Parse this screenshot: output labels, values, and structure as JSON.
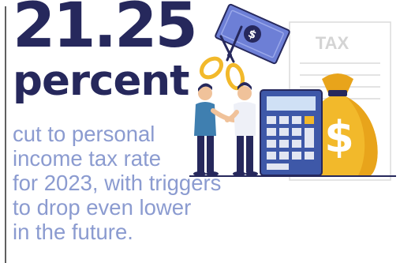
{
  "headline": {
    "stat": "21.25",
    "unit": "percent"
  },
  "description": {
    "lines": [
      "cut to personal",
      "income tax rate",
      "for 2023, with triggers",
      "to drop even lower",
      "in the future."
    ]
  },
  "illustration": {
    "form_label": "TAX",
    "bill_symbol": "$",
    "bag_symbol": "$",
    "colors": {
      "navy": "#26285c",
      "body_text": "#8b9bd0",
      "bill": "#6d7fd6",
      "gold": "#f2b92b",
      "calculator": "#3e58a8",
      "teal": "#3f7fb0"
    }
  }
}
